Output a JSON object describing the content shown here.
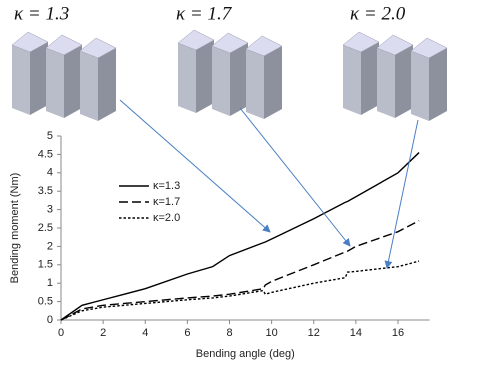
{
  "panels": [
    {
      "label": "κ = 1.3"
    },
    {
      "label": "κ = 1.7"
    },
    {
      "label": "κ = 2.0"
    }
  ],
  "chart_data": {
    "type": "line",
    "xlabel": "Bending angle (deg)",
    "ylabel": "Bending moment (Nm)",
    "x": [
      0,
      1,
      2,
      4,
      6,
      7.2,
      8,
      9.6,
      9.7,
      10,
      12,
      13.5,
      13.6,
      14,
      16,
      17
    ],
    "series": [
      {
        "name": "κ=1.3",
        "color": "#000000",
        "dash": "solid",
        "values": [
          0,
          0.4,
          0.55,
          0.85,
          1.25,
          1.45,
          1.75,
          2.1,
          2.12,
          2.2,
          2.75,
          3.2,
          3.22,
          3.35,
          4.0,
          4.55
        ]
      },
      {
        "name": "κ=1.7",
        "color": "#000000",
        "dash": "dashed",
        "values": [
          0,
          0.3,
          0.4,
          0.5,
          0.6,
          0.65,
          0.7,
          0.85,
          0.95,
          1.05,
          1.5,
          1.85,
          1.87,
          2.0,
          2.4,
          2.7
        ]
      },
      {
        "name": "κ=2.0",
        "color": "#000000",
        "dash": "dotted",
        "values": [
          0,
          0.25,
          0.35,
          0.45,
          0.55,
          0.6,
          0.65,
          0.8,
          0.7,
          0.75,
          1.0,
          1.15,
          1.3,
          1.32,
          1.45,
          1.6
        ]
      }
    ],
    "xlim": [
      0,
      17.5
    ],
    "ylim": [
      0,
      5
    ],
    "xticks": [
      0,
      2,
      4,
      6,
      8,
      10,
      12,
      14,
      16
    ],
    "yticks": [
      0,
      0.5,
      1,
      1.5,
      2,
      2.5,
      3,
      3.5,
      4,
      4.5,
      5
    ],
    "legend": "upper-left"
  }
}
